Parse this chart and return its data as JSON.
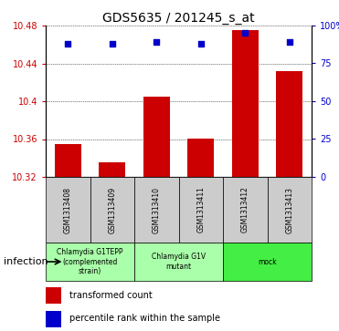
{
  "title": "GDS5635 / 201245_s_at",
  "samples": [
    "GSM1313408",
    "GSM1313409",
    "GSM1313410",
    "GSM1313411",
    "GSM1313412",
    "GSM1313413"
  ],
  "bar_values": [
    10.355,
    10.335,
    10.405,
    10.36,
    10.475,
    10.432
  ],
  "percentile_values": [
    88,
    88,
    89,
    88,
    95,
    89
  ],
  "ymin": 10.32,
  "ymax": 10.48,
  "yticks": [
    10.32,
    10.36,
    10.4,
    10.44,
    10.48
  ],
  "ytick_labels": [
    "10.32",
    "10.36",
    "10.4",
    "10.44",
    "10.48"
  ],
  "y2min": 0,
  "y2max": 100,
  "y2ticks": [
    0,
    25,
    50,
    75,
    100
  ],
  "y2tick_labels": [
    "0",
    "25",
    "50",
    "75",
    "100%"
  ],
  "bar_color": "#cc0000",
  "dot_color": "#0000cc",
  "groups": [
    {
      "label": "Chlamydia G1TEPP\n(complemented\nstrain)",
      "start": 0,
      "end": 2,
      "color": "#aaffaa"
    },
    {
      "label": "Chlamydia G1V\nmutant",
      "start": 2,
      "end": 4,
      "color": "#aaffaa"
    },
    {
      "label": "mock",
      "start": 4,
      "end": 6,
      "color": "#44ee44"
    }
  ],
  "factor_label": "infection",
  "legend_items": [
    {
      "color": "#cc0000",
      "label": "transformed count"
    },
    {
      "color": "#0000cc",
      "label": "percentile rank within the sample"
    }
  ],
  "tick_label_color_left": "#cc0000",
  "tick_label_color_right": "#0000cc",
  "sample_box_color": "#cccccc"
}
